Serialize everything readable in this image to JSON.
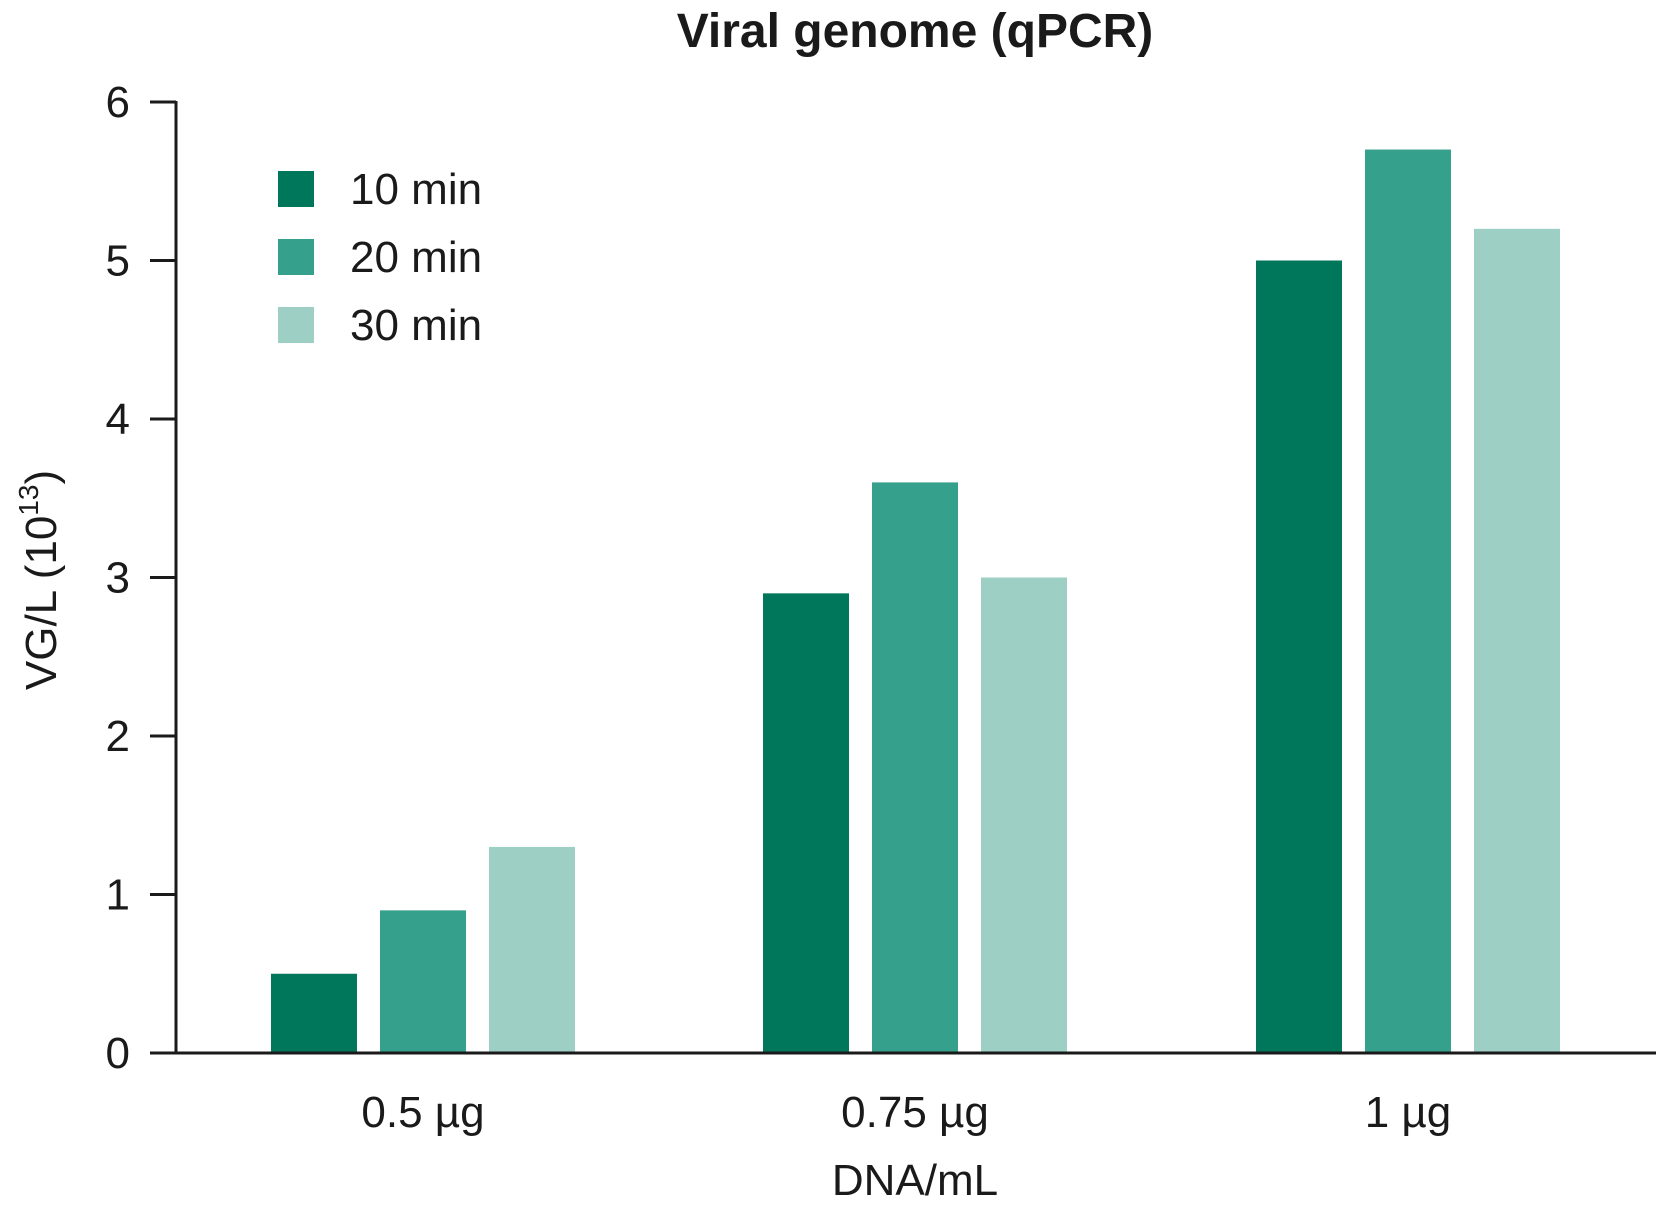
{
  "chart_data": {
    "type": "bar",
    "title": "Viral genome (qPCR)",
    "xlabel": "DNA/mL",
    "ylabel": "VG/L (10",
    "ylabel_superscript": "13",
    "ylabel_suffix": ")",
    "categories": [
      "0.5 µg",
      "0.75 µg",
      "1 µg"
    ],
    "series": [
      {
        "name": "10 min",
        "color": "#00765b",
        "values": [
          0.5,
          2.9,
          5.0
        ]
      },
      {
        "name": "20 min",
        "color": "#35a08b",
        "values": [
          0.9,
          3.6,
          5.7
        ]
      },
      {
        "name": "30 min",
        "color": "#9dcfc5",
        "values": [
          1.3,
          3.0,
          5.2
        ]
      }
    ],
    "ylim": [
      0,
      6
    ],
    "yticks": [
      0,
      1,
      2,
      3,
      4,
      5,
      6
    ],
    "ytick_labels": [
      "0",
      "1",
      "2",
      "3",
      "4",
      "5",
      "6"
    ],
    "grid": false,
    "legend_position": "top-left"
  }
}
